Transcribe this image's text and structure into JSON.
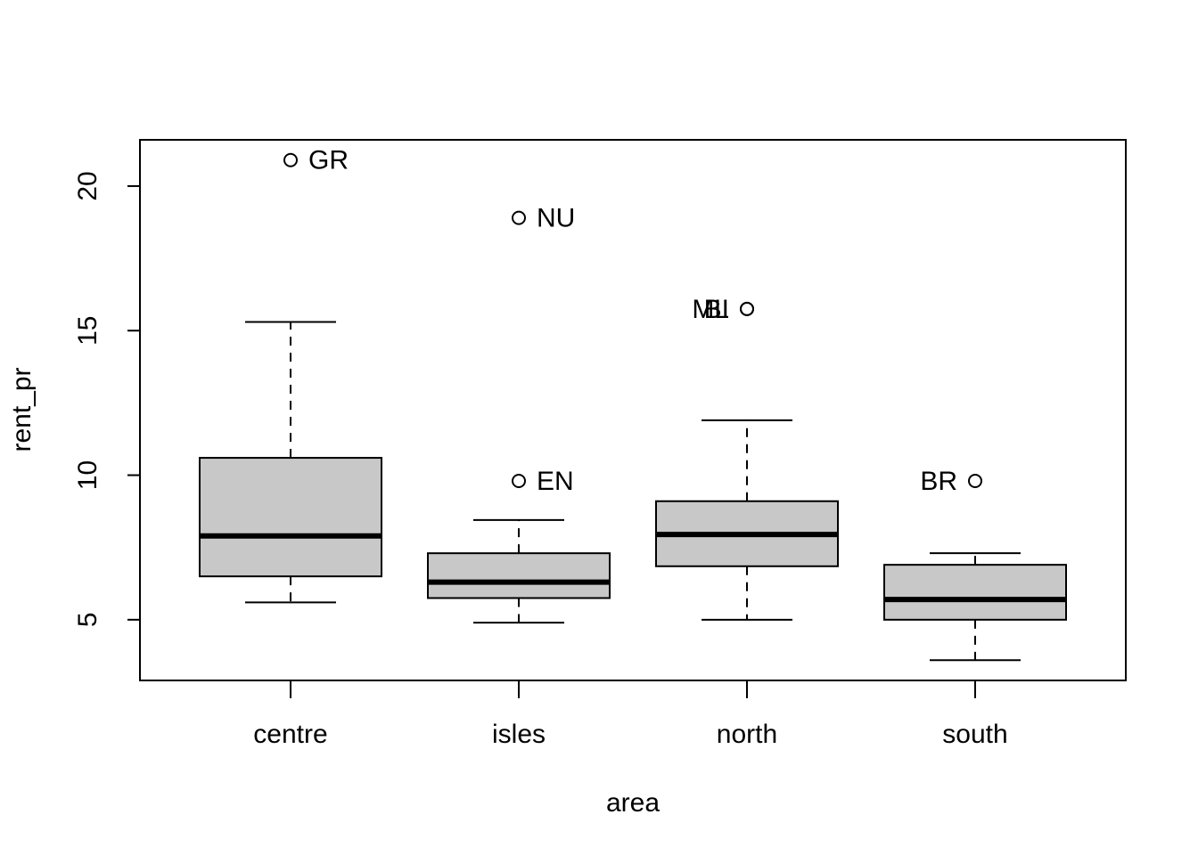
{
  "chart_data": {
    "type": "box",
    "title": "",
    "xlabel": "area",
    "ylabel": "rent_pr",
    "ylim": [
      2.9,
      21.6
    ],
    "yticks": [
      5,
      10,
      15,
      20
    ],
    "categories": [
      "centre",
      "isles",
      "north",
      "south"
    ],
    "boxes": [
      {
        "category": "centre",
        "whisker_low": 5.6,
        "q1": 6.5,
        "median": 7.9,
        "q3": 10.6,
        "whisker_high": 15.3,
        "outliers": [
          {
            "value": 20.9,
            "label": "GR",
            "label_side": "right"
          }
        ]
      },
      {
        "category": "isles",
        "whisker_low": 4.9,
        "q1": 5.75,
        "median": 6.3,
        "q3": 7.3,
        "whisker_high": 8.45,
        "outliers": [
          {
            "value": 18.9,
            "label": "NU",
            "label_side": "right"
          },
          {
            "value": 9.8,
            "label": "EN",
            "label_side": "right"
          }
        ]
      },
      {
        "category": "north",
        "whisker_low": 5.0,
        "q1": 6.85,
        "median": 7.95,
        "q3": 9.1,
        "whisker_high": 11.9,
        "outliers": [
          {
            "value": 15.75,
            "label": "BI",
            "label_side": "left"
          },
          {
            "value": 15.75,
            "label": "ML",
            "label_side": "left"
          }
        ]
      },
      {
        "category": "south",
        "whisker_low": 3.6,
        "q1": 5.0,
        "median": 5.7,
        "q3": 6.9,
        "whisker_high": 7.3,
        "outliers": [
          {
            "value": 9.8,
            "label": "BR",
            "label_side": "left"
          }
        ]
      }
    ]
  }
}
